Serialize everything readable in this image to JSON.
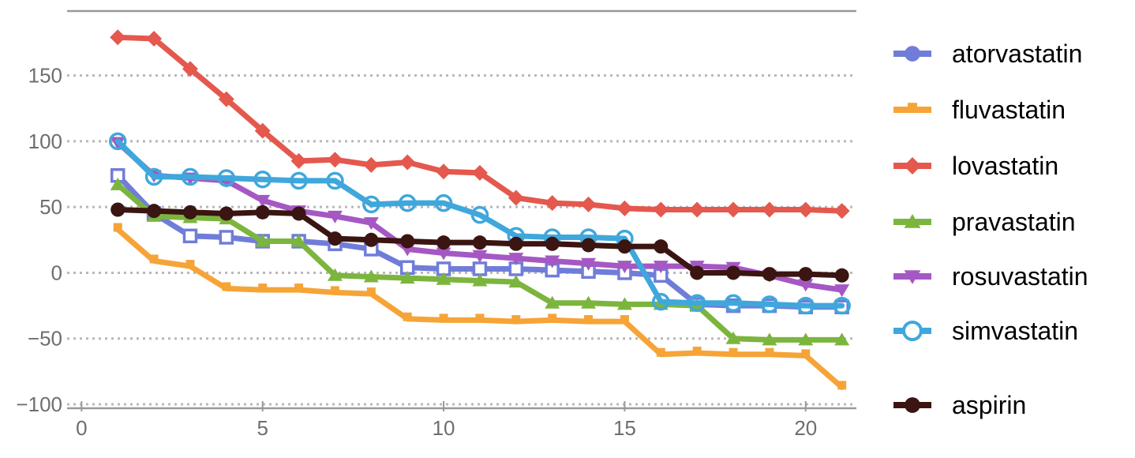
{
  "chart_data": {
    "type": "line",
    "x": [
      1,
      2,
      3,
      4,
      5,
      6,
      7,
      8,
      9,
      10,
      11,
      12,
      13,
      14,
      15,
      16,
      17,
      18,
      19,
      20,
      21
    ],
    "series": [
      {
        "name": "atorvastatin",
        "color": "#707dd8",
        "marker": "square-open",
        "legend_marker": "circle",
        "values": [
          74,
          45,
          28,
          27,
          24,
          24,
          22,
          18,
          4,
          3,
          3,
          3,
          2,
          1,
          0,
          -2,
          -24,
          -25,
          -25,
          -26,
          -26
        ]
      },
      {
        "name": "fluvastatin",
        "color": "#f6a437",
        "marker": "square",
        "legend_marker": "square",
        "values": [
          33,
          9,
          5,
          -12,
          -13,
          -13,
          -15,
          -16,
          -35,
          -36,
          -36,
          -37,
          -36,
          -37,
          -37,
          -62,
          -61,
          -62,
          -62,
          -63,
          -87
        ]
      },
      {
        "name": "lovastatin",
        "color": "#e4584e",
        "marker": "diamond",
        "legend_marker": "diamond",
        "values": [
          179,
          178,
          155,
          132,
          108,
          85,
          86,
          82,
          84,
          77,
          76,
          57,
          53,
          52,
          49,
          48,
          48,
          48,
          48,
          48,
          47
        ]
      },
      {
        "name": "pravastatin",
        "color": "#7cb53e",
        "marker": "triangle-up",
        "legend_marker": "triangle-up",
        "values": [
          67,
          43,
          42,
          41,
          24,
          24,
          -2,
          -3,
          -4,
          -5,
          -6,
          -7,
          -23,
          -23,
          -24,
          -24,
          -25,
          -50,
          -51,
          -51,
          -51
        ]
      },
      {
        "name": "rosuvastatin",
        "color": "#a558c3",
        "marker": "triangle-down",
        "legend_marker": "triangle-down",
        "values": [
          99,
          74,
          72,
          70,
          55,
          47,
          43,
          38,
          18,
          15,
          13,
          11,
          9,
          7,
          5,
          5,
          5,
          4,
          -2,
          -9,
          -13
        ]
      },
      {
        "name": "simvastatin",
        "color": "#3fa7dc",
        "marker": "circle-open",
        "legend_marker": "circle-open",
        "values": [
          100,
          73,
          73,
          72,
          71,
          70,
          70,
          52,
          53,
          53,
          44,
          28,
          27,
          27,
          26,
          -22,
          -23,
          -23,
          -24,
          -25,
          -25
        ]
      },
      {
        "name": "aspirin",
        "color": "#3a1511",
        "marker": "circle",
        "legend_marker": "circle",
        "values": [
          48,
          47,
          46,
          45,
          46,
          45,
          26,
          25,
          24,
          23,
          23,
          22,
          22,
          21,
          20,
          20,
          0,
          0,
          -1,
          -1,
          -2
        ]
      }
    ],
    "xticks": [
      0,
      5,
      10,
      15,
      20
    ],
    "yticks": [
      150,
      100,
      50,
      0,
      -50,
      -100
    ],
    "xlim": [
      -0.4,
      21.4
    ],
    "ylim": [
      -103,
      199
    ],
    "grid": "horizontal-dotted",
    "legend_position": "right-outside",
    "title": "",
    "xlabel": "",
    "ylabel": "",
    "colors": {
      "background": "#ffffff",
      "grid": "#b8b8b8",
      "axis_line": "#999999",
      "tick_label": "#6e6e6e",
      "legend_text": "#000000"
    }
  }
}
